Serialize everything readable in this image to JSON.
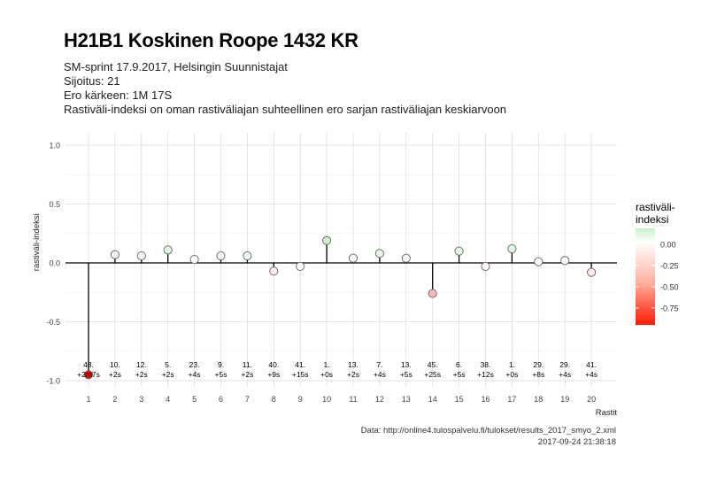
{
  "header": {
    "title": "H21B1 Koskinen Roope 1432 KR",
    "subtitle_lines": [
      "SM-sprint 17.9.2017, Helsingin Suunnistajat",
      "Sijoitus: 21",
      "Ero kärkeen: 1M 17S",
      "Rastiväli-indeksi on oman rastiväliajan suhteellinen ero sarjan rastiväliajan keskiarvoon"
    ]
  },
  "caption": {
    "source": "Data: http://online4.tulospalvelu.fi/tulokset/results_2017_smyo_2.xml",
    "timestamp": "2017-09-24 21:38:18"
  },
  "chart_data": {
    "type": "lollipop",
    "xlabel": "Rastit",
    "ylabel": "rastiväli-indeksi",
    "ylim": [
      -1.0,
      1.0
    ],
    "yticks": [
      -1.0,
      -0.5,
      0.0,
      0.5,
      1.0
    ],
    "ytick_labels": [
      "-1.0",
      "-0.5",
      "0.0",
      "0.5",
      "1.0"
    ],
    "categories": [
      "1",
      "2",
      "3",
      "4",
      "5",
      "6",
      "7",
      "8",
      "9",
      "10",
      "11",
      "12",
      "13",
      "14",
      "15",
      "16",
      "17",
      "18",
      "19",
      "20"
    ],
    "values": [
      -0.95,
      0.07,
      0.06,
      0.11,
      0.03,
      0.06,
      0.06,
      -0.07,
      -0.03,
      0.19,
      0.04,
      0.08,
      0.04,
      -0.26,
      0.1,
      -0.03,
      0.12,
      0.01,
      0.02,
      -0.08
    ],
    "rank_labels": [
      "48.",
      "10.",
      "12.",
      "5.",
      "23.",
      "9.",
      "11.",
      "40.",
      "41.",
      "1.",
      "13.",
      "7.",
      "13.",
      "45.",
      "6.",
      "38.",
      "1.",
      "29.",
      "29.",
      "41."
    ],
    "diff_labels": [
      "+2m7s",
      "+2s",
      "+2s",
      "+2s",
      "+4s",
      "+5s",
      "+2s",
      "+9s",
      "+15s",
      "+0s",
      "+2s",
      "+4s",
      "+5s",
      "+25s",
      "+5s",
      "+12s",
      "+0s",
      "+8s",
      "+4s",
      "+4s"
    ],
    "grid": true,
    "legend": {
      "title_lines": [
        "rastiväli-",
        "indeksi"
      ],
      "ticks": [
        0.0,
        -0.25,
        -0.5,
        -0.75
      ],
      "tick_labels": [
        "0.00",
        "-0.25",
        "-0.50",
        "-0.75"
      ],
      "range": [
        -0.95,
        0.19
      ],
      "position": "right"
    },
    "colors": {
      "low": "#ff0000",
      "mid": "#ffffff",
      "high": "#c8f0c8"
    }
  }
}
